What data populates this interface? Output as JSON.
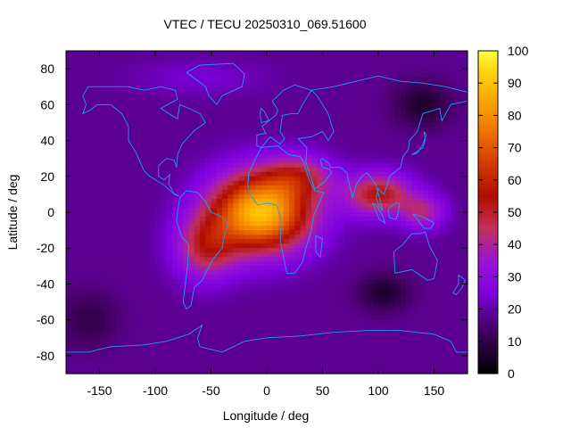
{
  "chart_data": {
    "type": "heatmap",
    "title": "VTEC / TECU 20250310_069.51600",
    "xlabel": "Longitude / deg",
    "ylabel": "Latitude / deg",
    "xlim": [
      -180,
      180
    ],
    "ylim": [
      -90,
      90
    ],
    "x_ticks": [
      "-150",
      "-100",
      "-50",
      "0",
      "50",
      "100",
      "150"
    ],
    "x_tick_values": [
      -150,
      -100,
      -50,
      0,
      50,
      100,
      150
    ],
    "y_ticks": [
      "80",
      "60",
      "40",
      "20",
      "0",
      "-20",
      "-40",
      "-60",
      "-80"
    ],
    "y_tick_values": [
      80,
      60,
      40,
      20,
      0,
      -20,
      -40,
      -60,
      -80
    ],
    "colorbar": {
      "min": 0,
      "max": 100,
      "ticks": [
        "100",
        "90",
        "80",
        "70",
        "60",
        "50",
        "40",
        "30",
        "20",
        "10",
        "0"
      ],
      "tick_values": [
        100,
        90,
        80,
        70,
        60,
        50,
        40,
        30,
        20,
        10,
        0
      ]
    },
    "grid_lon_step": 5,
    "grid_lat_step": 2.5,
    "background_value": 18,
    "features": [
      {
        "name": "main-equatorial-anomaly",
        "lon": -5,
        "lat": 0,
        "sigma_lon": 45,
        "sigma_lat": 22,
        "amplitude": 72
      },
      {
        "name": "south-america-extension",
        "lon": -55,
        "lat": -20,
        "sigma_lon": 28,
        "sigma_lat": 18,
        "amplitude": 28
      },
      {
        "name": "north-africa-crest",
        "lon": 30,
        "lat": 20,
        "sigma_lon": 30,
        "sigma_lat": 12,
        "amplitude": 22
      },
      {
        "name": "asia-band",
        "lon": 100,
        "lat": 10,
        "sigma_lon": 30,
        "sigma_lat": 12,
        "amplitude": 35
      },
      {
        "name": "pacific-tail",
        "lon": 140,
        "lat": 0,
        "sigma_lon": 20,
        "sigma_lat": 10,
        "amplitude": 22
      },
      {
        "name": "north-pacific-minimum",
        "lon": 140,
        "lat": 60,
        "sigma_lon": 25,
        "sigma_lat": 12,
        "amplitude": -12
      },
      {
        "name": "south-pacific-minimum",
        "lon": 105,
        "lat": -45,
        "sigma_lon": 22,
        "sigma_lat": 10,
        "amplitude": -12
      },
      {
        "name": "antarctic-minimum",
        "lon": -160,
        "lat": -60,
        "sigma_lon": 25,
        "sigma_lat": 15,
        "amplitude": -8
      },
      {
        "name": "arctic-enhancement",
        "lon": -60,
        "lat": 75,
        "sigma_lon": 60,
        "sigma_lat": 10,
        "amplitude": 6
      }
    ],
    "coastlines": [
      {
        "name": "north-america",
        "points": [
          [
            -165,
            65
          ],
          [
            -160,
            70
          ],
          [
            -140,
            70
          ],
          [
            -125,
            70
          ],
          [
            -110,
            68
          ],
          [
            -95,
            70
          ],
          [
            -82,
            68
          ],
          [
            -80,
            63
          ],
          [
            -95,
            58
          ],
          [
            -88,
            55
          ],
          [
            -80,
            52
          ],
          [
            -78,
            60
          ],
          [
            -70,
            58
          ],
          [
            -60,
            55
          ],
          [
            -55,
            50
          ],
          [
            -66,
            45
          ],
          [
            -70,
            42
          ],
          [
            -76,
            38
          ],
          [
            -80,
            32
          ],
          [
            -81,
            25
          ],
          [
            -83,
            29
          ],
          [
            -90,
            30
          ],
          [
            -97,
            26
          ],
          [
            -97,
            20
          ],
          [
            -92,
            18
          ],
          [
            -87,
            21
          ],
          [
            -88,
            16
          ],
          [
            -83,
            10
          ],
          [
            -79,
            9
          ],
          [
            -85,
            11
          ],
          [
            -92,
            15
          ],
          [
            -105,
            20
          ],
          [
            -110,
            23
          ],
          [
            -115,
            30
          ],
          [
            -118,
            34
          ],
          [
            -124,
            40
          ],
          [
            -124,
            48
          ],
          [
            -130,
            55
          ],
          [
            -140,
            60
          ],
          [
            -152,
            60
          ],
          [
            -158,
            57
          ],
          [
            -165,
            55
          ],
          [
            -162,
            60
          ],
          [
            -165,
            65
          ]
        ]
      },
      {
        "name": "greenland",
        "points": [
          [
            -72,
            78
          ],
          [
            -60,
            82
          ],
          [
            -30,
            83
          ],
          [
            -20,
            77
          ],
          [
            -22,
            70
          ],
          [
            -40,
            65
          ],
          [
            -45,
            60
          ],
          [
            -52,
            65
          ],
          [
            -55,
            70
          ],
          [
            -72,
            78
          ]
        ]
      },
      {
        "name": "south-america",
        "points": [
          [
            -78,
            8
          ],
          [
            -72,
            12
          ],
          [
            -62,
            11
          ],
          [
            -55,
            6
          ],
          [
            -50,
            0
          ],
          [
            -42,
            -2
          ],
          [
            -35,
            -6
          ],
          [
            -38,
            -13
          ],
          [
            -40,
            -20
          ],
          [
            -48,
            -26
          ],
          [
            -55,
            -34
          ],
          [
            -58,
            -38
          ],
          [
            -65,
            -42
          ],
          [
            -68,
            -52
          ],
          [
            -72,
            -54
          ],
          [
            -75,
            -50
          ],
          [
            -73,
            -40
          ],
          [
            -71,
            -30
          ],
          [
            -70,
            -18
          ],
          [
            -76,
            -14
          ],
          [
            -81,
            -5
          ],
          [
            -80,
            0
          ],
          [
            -78,
            8
          ]
        ]
      },
      {
        "name": "africa",
        "points": [
          [
            -17,
            15
          ],
          [
            -16,
            22
          ],
          [
            -10,
            30
          ],
          [
            -5,
            36
          ],
          [
            10,
            37
          ],
          [
            20,
            32
          ],
          [
            30,
            31
          ],
          [
            33,
            28
          ],
          [
            38,
            18
          ],
          [
            43,
            12
          ],
          [
            51,
            11
          ],
          [
            42,
            -2
          ],
          [
            40,
            -10
          ],
          [
            35,
            -20
          ],
          [
            32,
            -28
          ],
          [
            25,
            -34
          ],
          [
            18,
            -34
          ],
          [
            15,
            -25
          ],
          [
            12,
            -15
          ],
          [
            13,
            -5
          ],
          [
            9,
            4
          ],
          [
            0,
            5
          ],
          [
            -8,
            4
          ],
          [
            -15,
            10
          ],
          [
            -17,
            15
          ]
        ]
      },
      {
        "name": "madagascar",
        "points": [
          [
            44,
            -13
          ],
          [
            50,
            -15
          ],
          [
            48,
            -25
          ],
          [
            44,
            -22
          ],
          [
            44,
            -13
          ]
        ]
      },
      {
        "name": "europe",
        "points": [
          [
            -9,
            37
          ],
          [
            -9,
            43
          ],
          [
            -1,
            44
          ],
          [
            -4,
            48
          ],
          [
            2,
            51
          ],
          [
            8,
            54
          ],
          [
            10,
            57
          ],
          [
            5,
            62
          ],
          [
            15,
            68
          ],
          [
            25,
            71
          ],
          [
            40,
            68
          ],
          [
            32,
            60
          ],
          [
            28,
            55
          ],
          [
            22,
            55
          ],
          [
            14,
            54
          ],
          [
            12,
            45
          ],
          [
            16,
            41
          ],
          [
            12,
            38
          ],
          [
            3,
            42
          ],
          [
            -5,
            36
          ],
          [
            -9,
            37
          ]
        ]
      },
      {
        "name": "great-britain",
        "points": [
          [
            -5,
            50
          ],
          [
            2,
            51
          ],
          [
            -2,
            56
          ],
          [
            -5,
            58
          ],
          [
            -6,
            55
          ],
          [
            -5,
            50
          ]
        ]
      },
      {
        "name": "asia",
        "points": [
          [
            40,
            68
          ],
          [
            60,
            70
          ],
          [
            80,
            73
          ],
          [
            100,
            76
          ],
          [
            120,
            73
          ],
          [
            140,
            72
          ],
          [
            160,
            70
          ],
          [
            180,
            67
          ],
          [
            180,
            62
          ],
          [
            165,
            60
          ],
          [
            157,
            51
          ],
          [
            155,
            58
          ],
          [
            140,
            55
          ],
          [
            135,
            45
          ],
          [
            128,
            40
          ],
          [
            127,
            35
          ],
          [
            122,
            31
          ],
          [
            120,
            25
          ],
          [
            110,
            20
          ],
          [
            108,
            15
          ],
          [
            105,
            10
          ],
          [
            100,
            13
          ],
          [
            98,
            8
          ],
          [
            101,
            3
          ],
          [
            104,
            1
          ],
          [
            98,
            15
          ],
          [
            95,
            18
          ],
          [
            90,
            22
          ],
          [
            85,
            20
          ],
          [
            80,
            15
          ],
          [
            77,
            8
          ],
          [
            73,
            18
          ],
          [
            72,
            22
          ],
          [
            66,
            25
          ],
          [
            57,
            25
          ],
          [
            56,
            27
          ],
          [
            50,
            30
          ],
          [
            48,
            29
          ],
          [
            50,
            25
          ],
          [
            56,
            24
          ],
          [
            58,
            22
          ],
          [
            52,
            17
          ],
          [
            43,
            13
          ],
          [
            35,
            28
          ],
          [
            36,
            36
          ],
          [
            28,
            41
          ],
          [
            40,
            42
          ],
          [
            50,
            45
          ],
          [
            55,
            40
          ],
          [
            60,
            45
          ],
          [
            55,
            55
          ],
          [
            50,
            60
          ],
          [
            45,
            65
          ],
          [
            40,
            68
          ]
        ]
      },
      {
        "name": "japan",
        "points": [
          [
            130,
            32
          ],
          [
            135,
            34
          ],
          [
            140,
            36
          ],
          [
            142,
            40
          ],
          [
            141,
            45
          ],
          [
            143,
            43
          ],
          [
            140,
            38
          ],
          [
            135,
            33
          ],
          [
            130,
            32
          ]
        ]
      },
      {
        "name": "borneo",
        "points": [
          [
            109,
            2
          ],
          [
            115,
            5
          ],
          [
            119,
            5
          ],
          [
            118,
            0
          ],
          [
            116,
            -4
          ],
          [
            110,
            -3
          ],
          [
            109,
            2
          ]
        ]
      },
      {
        "name": "sumatra",
        "points": [
          [
            95,
            5
          ],
          [
            98,
            4
          ],
          [
            104,
            -2
          ],
          [
            106,
            -6
          ],
          [
            101,
            -4
          ],
          [
            95,
            5
          ]
        ]
      },
      {
        "name": "new-guinea",
        "points": [
          [
            131,
            -1
          ],
          [
            141,
            -3
          ],
          [
            150,
            -6
          ],
          [
            147,
            -9
          ],
          [
            141,
            -9
          ],
          [
            135,
            -4
          ],
          [
            131,
            -1
          ]
        ]
      },
      {
        "name": "australia",
        "points": [
          [
            114,
            -22
          ],
          [
            122,
            -18
          ],
          [
            130,
            -12
          ],
          [
            137,
            -12
          ],
          [
            142,
            -11
          ],
          [
            146,
            -19
          ],
          [
            153,
            -27
          ],
          [
            150,
            -37
          ],
          [
            144,
            -38
          ],
          [
            135,
            -34
          ],
          [
            130,
            -32
          ],
          [
            115,
            -34
          ],
          [
            114,
            -22
          ]
        ]
      },
      {
        "name": "new-zealand",
        "points": [
          [
            172,
            -35
          ],
          [
            178,
            -38
          ],
          [
            175,
            -42
          ],
          [
            170,
            -46
          ],
          [
            167,
            -45
          ],
          [
            172,
            -40
          ],
          [
            172,
            -35
          ]
        ]
      },
      {
        "name": "antarctica",
        "points": [
          [
            -180,
            -78
          ],
          [
            -160,
            -78
          ],
          [
            -140,
            -75
          ],
          [
            -110,
            -74
          ],
          [
            -90,
            -72
          ],
          [
            -70,
            -68
          ],
          [
            -58,
            -63
          ],
          [
            -62,
            -70
          ],
          [
            -60,
            -75
          ],
          [
            -40,
            -78
          ],
          [
            -20,
            -72
          ],
          [
            0,
            -70
          ],
          [
            30,
            -69
          ],
          [
            60,
            -67
          ],
          [
            90,
            -66
          ],
          [
            120,
            -66
          ],
          [
            150,
            -68
          ],
          [
            165,
            -72
          ],
          [
            170,
            -78
          ],
          [
            180,
            -78
          ]
        ]
      }
    ]
  }
}
